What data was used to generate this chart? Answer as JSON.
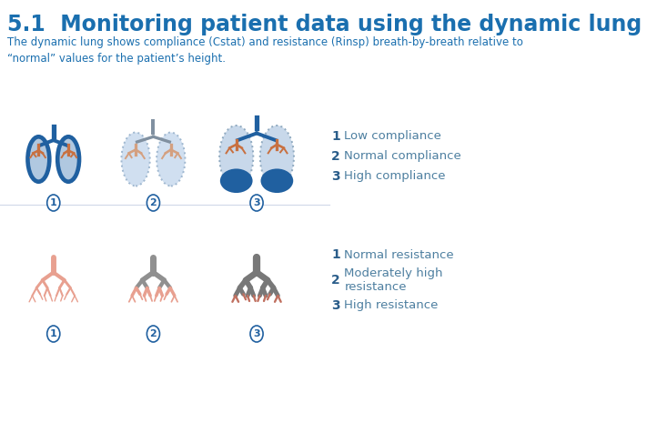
{
  "title": "5.1  Monitoring patient data using the dynamic lung",
  "subtitle": "The dynamic lung shows compliance (Cstat) and resistance (Rinsp) breath-by-breath relative to\n“normal” values for the patient’s height.",
  "title_color": "#1a6faf",
  "subtitle_color": "#1a6faf",
  "legend_compliance": [
    {
      "num": "1",
      "text": "Low compliance"
    },
    {
      "num": "2",
      "text": "Normal compliance"
    },
    {
      "num": "3",
      "text": "High compliance"
    }
  ],
  "legend_resistance": [
    {
      "num": "1",
      "text": "Normal resistance"
    },
    {
      "num": "2",
      "text": "Moderately high\nresistance"
    },
    {
      "num": "3",
      "text": "High resistance"
    }
  ],
  "legend_text_color": "#4d7fa0",
  "legend_num_color": "#2a5d8a",
  "bg_color": "#ffffff",
  "lung_dark_blue": "#2060a0",
  "lung_light_blue": "#b0c8e0",
  "lung_pattern_blue": "#c8d8ea",
  "airway_color": "#c87040",
  "lung_outline": "#1a4f8a",
  "bronchi_light": "#d4a090",
  "bronchi_dark": "#b06040",
  "airway_gray": "#8a8a8a",
  "label_circle_color": "#ddeeff",
  "label_text_color": "#2060a0"
}
